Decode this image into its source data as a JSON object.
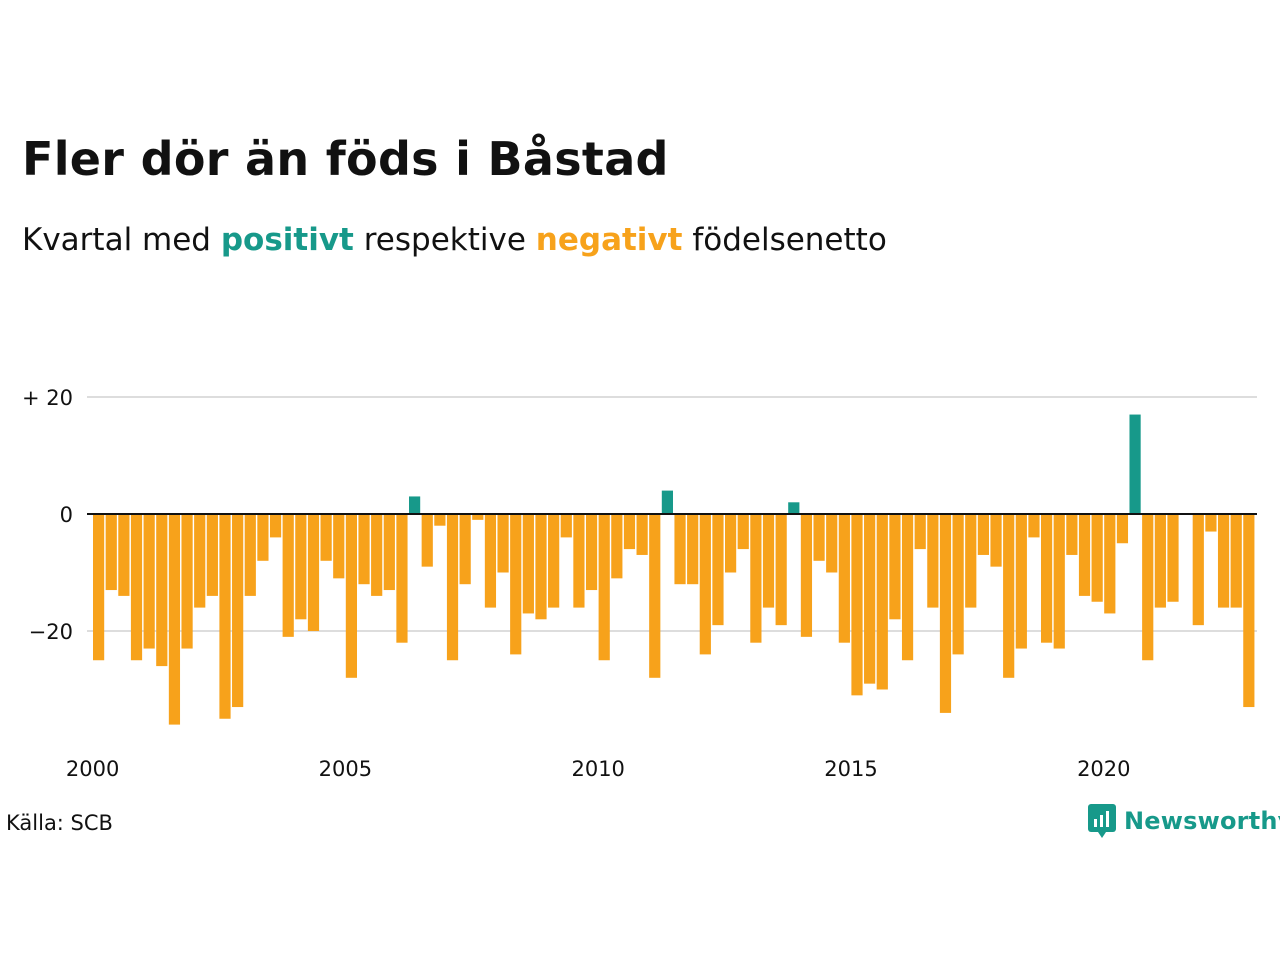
{
  "title": "Fler dör än föds i Båstad",
  "subtitle": {
    "before": "Kvartal med ",
    "positive_word": "positivt",
    "middle": " respektive ",
    "negative_word": "negativt",
    "after": " födelsenetto"
  },
  "source": "Källa: SCB",
  "logo_text": "Newsworthy",
  "colors": {
    "positive": "#17998a",
    "negative": "#f7a21b",
    "grid": "#dddddd",
    "baseline": "#111111",
    "text": "#111111"
  },
  "chart_data": {
    "type": "bar",
    "x_start": "2000 Q1",
    "x_tick_labels": [
      "2000",
      "2005",
      "2010",
      "2015",
      "2020"
    ],
    "y_tick_labels": [
      "+ 20",
      "0",
      "−20"
    ],
    "y_ticks": [
      20,
      0,
      -20
    ],
    "ylim": [
      -38,
      22
    ],
    "values": [
      -25,
      -13,
      -14,
      -25,
      -23,
      -26,
      -36,
      -23,
      -16,
      -14,
      -35,
      -33,
      -14,
      -8,
      -4,
      -21,
      -18,
      -20,
      -8,
      -11,
      -28,
      -12,
      -14,
      -13,
      -22,
      3,
      -9,
      -2,
      -25,
      -12,
      -1,
      -16,
      -10,
      -24,
      -17,
      -18,
      -16,
      -4,
      -16,
      -13,
      -25,
      -11,
      -6,
      -7,
      -28,
      4,
      -12,
      -12,
      -24,
      -19,
      -10,
      -6,
      -22,
      -16,
      -19,
      2,
      -21,
      -8,
      -10,
      -22,
      -31,
      -29,
      -30,
      -18,
      -25,
      -6,
      -16,
      -34,
      -24,
      -16,
      -7,
      -9,
      -28,
      -23,
      -4,
      -22,
      -23,
      -7,
      -14,
      -15,
      -17,
      -5,
      17,
      -25,
      -16,
      -15,
      0,
      -19,
      -3,
      -16,
      -16,
      -33
    ]
  }
}
